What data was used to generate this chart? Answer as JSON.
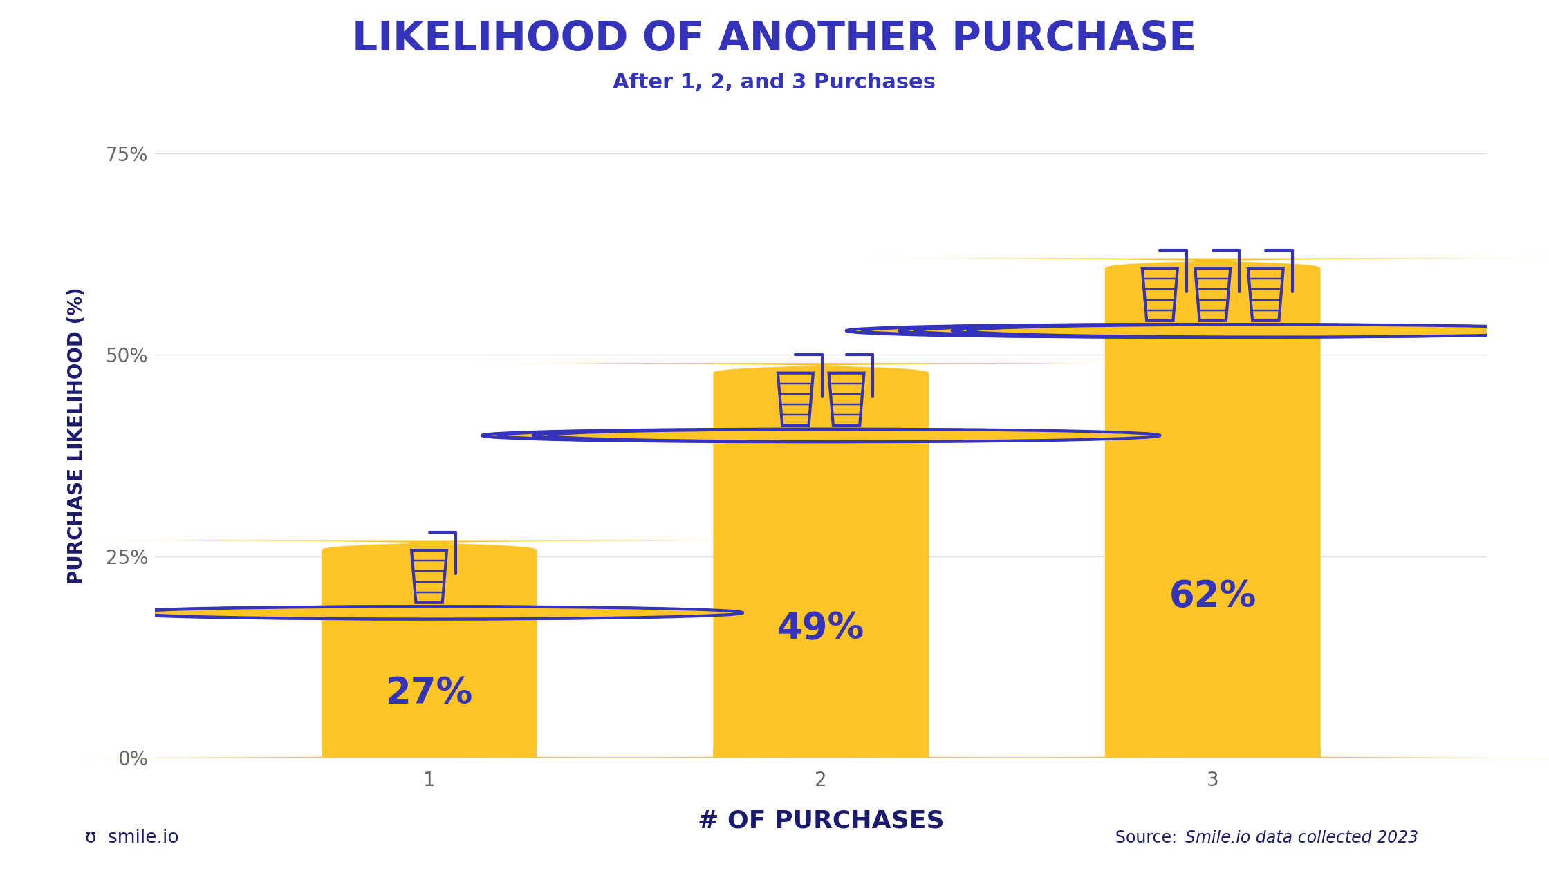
{
  "title": "LIKELIHOOD OF ANOTHER PURCHASE",
  "subtitle": "After 1, 2, and 3 Purchases",
  "xlabel": "# OF PURCHASES",
  "ylabel": "PURCHASE LIKELIHOOD (%)",
  "categories": [
    1,
    2,
    3
  ],
  "values": [
    27,
    49,
    62
  ],
  "bar_color": "#FFC425",
  "value_labels": [
    "27%",
    "49%",
    "62%"
  ],
  "value_color": "#3333BB",
  "title_color": "#3333BB",
  "subtitle_color": "#3333BB",
  "xlabel_color": "#1a1a6e",
  "ylabel_color": "#1a1a6e",
  "tick_color": "#666666",
  "yticks": [
    0,
    25,
    50,
    75
  ],
  "ytick_labels": [
    "0%",
    "25%",
    "50%",
    "75%"
  ],
  "ylim": [
    0,
    80
  ],
  "grid_color": "#dddddd",
  "background_color": "#ffffff",
  "source_color": "#1a1a6e",
  "logo_color": "#1a1a6e",
  "title_fontsize": 42,
  "subtitle_fontsize": 22,
  "xlabel_fontsize": 26,
  "ylabel_fontsize": 20,
  "value_fontsize": 38,
  "tick_fontsize": 18,
  "cart_stroke": "#3333BB",
  "cart_fill": "#FFC425",
  "bar_width": 0.55
}
